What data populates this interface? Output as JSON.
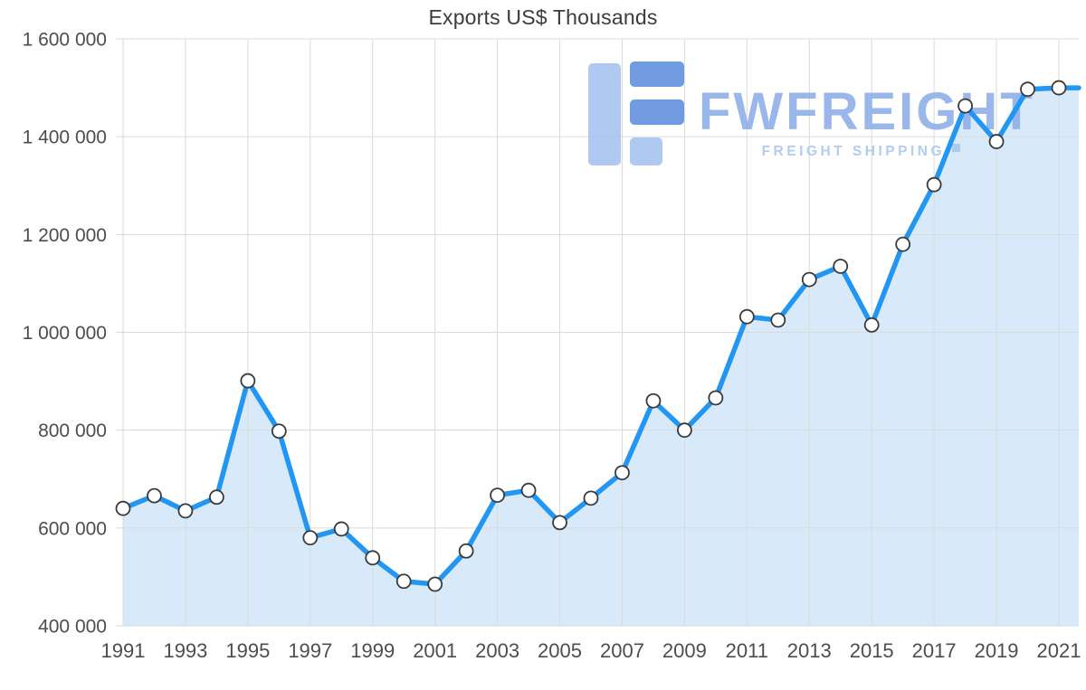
{
  "chart_data": {
    "type": "area",
    "title": "Exports US$ Thousands",
    "x": [
      1991,
      1992,
      1993,
      1994,
      1995,
      1996,
      1997,
      1998,
      1999,
      2000,
      2001,
      2002,
      2003,
      2004,
      2005,
      2006,
      2007,
      2008,
      2009,
      2010,
      2011,
      2012,
      2013,
      2014,
      2015,
      2016,
      2017,
      2018,
      2019,
      2020,
      2021
    ],
    "series": [
      {
        "name": "Exports US$ Thousands",
        "values": [
          640000,
          666000,
          635000,
          663000,
          901000,
          798000,
          580000,
          598000,
          539000,
          491000,
          485000,
          553000,
          667000,
          677000,
          611000,
          661000,
          713000,
          860000,
          800000,
          866000,
          1032000,
          1025000,
          1108000,
          1135000,
          1015000,
          1180000,
          1302000,
          1463000,
          1390000,
          1497000,
          1500000
        ]
      }
    ],
    "ylim": [
      400000,
      1600000
    ],
    "ytick_step": 200000,
    "ytick_labels": [
      "400 000",
      "600 000",
      "800 000",
      "1 000 000",
      "1 200 000",
      "1 400 000",
      "1 600 000"
    ],
    "xtick_labels": [
      "1991",
      "1993",
      "1995",
      "1997",
      "1999",
      "2001",
      "2003",
      "2005",
      "2007",
      "2009",
      "2011",
      "2013",
      "2015",
      "2017",
      "2019",
      "2021"
    ],
    "grid": true,
    "legend": "none",
    "xlabel": "",
    "ylabel": "",
    "colors": {
      "line": "#2196F3",
      "fill": "#D8EAF9",
      "marker_fill": "#FFFFFF",
      "marker_stroke": "#3A3A3A",
      "gridline": "#DADADA",
      "tick_text": "#4D4D4D",
      "title_text": "#3C3C3C"
    }
  },
  "watermark": {
    "brand": "FWFREIGHT",
    "tagline": "FREIGHT SHIPPING",
    "colors": {
      "brand_text": "#8CAEE9",
      "tagline_text": "#A9C6F0",
      "icon_light": "#A5C2F0",
      "icon_dark": "#5E8EDC"
    }
  }
}
